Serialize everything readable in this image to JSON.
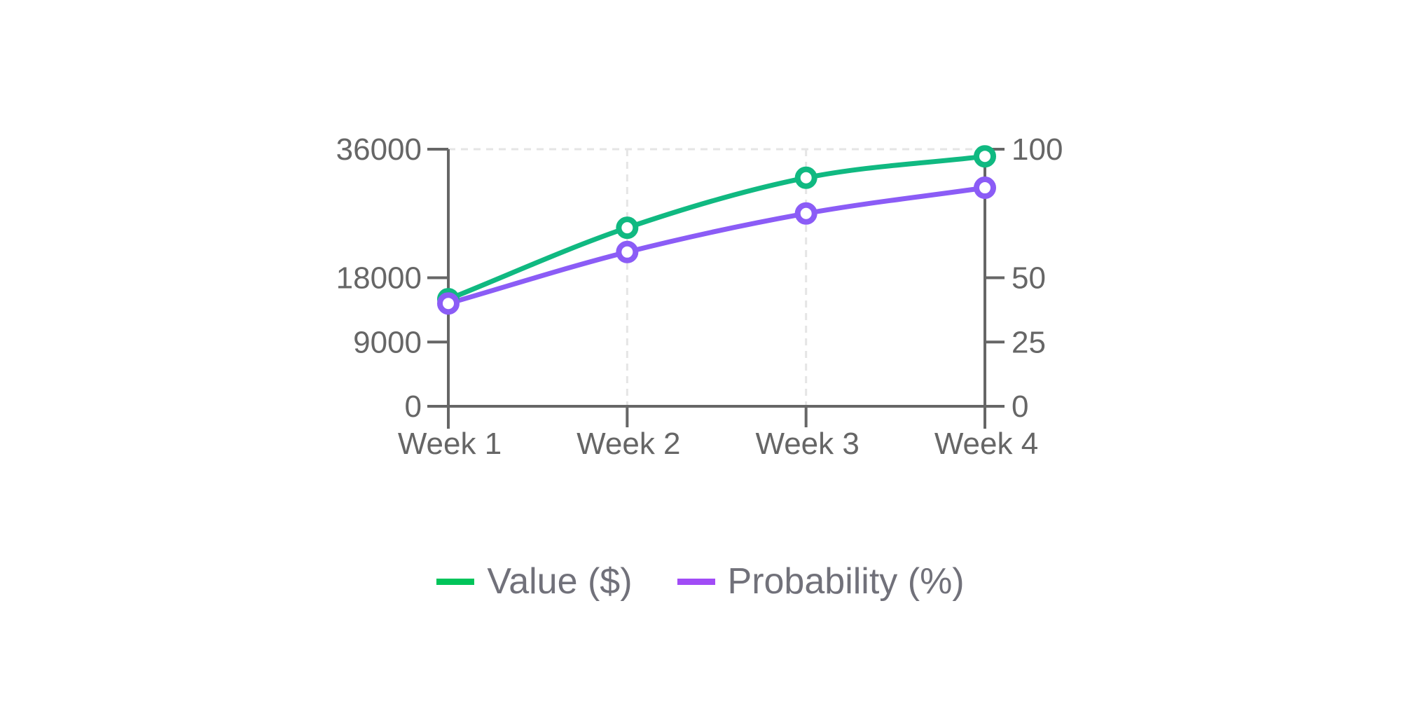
{
  "chart_data": {
    "type": "line",
    "title": "",
    "categories": [
      "Week 1",
      "Week 2",
      "Week 3",
      "Week 4"
    ],
    "series": [
      {
        "name": "Value ($)",
        "axis": "left",
        "color": "#10b981",
        "legend_color": "#00c45a",
        "values": [
          15000,
          25000,
          32000,
          35000
        ]
      },
      {
        "name": "Probability (%)",
        "axis": "right",
        "color": "#8b5cf6",
        "legend_color": "#a14cf6",
        "values": [
          40,
          60,
          75,
          85
        ]
      }
    ],
    "xlabel": "",
    "ylabel_left": "",
    "ylabel_right": "",
    "y_left": {
      "ticks": [
        0,
        9000,
        18000,
        36000
      ],
      "tick_labels": [
        "0",
        "9000",
        "18000",
        "36000"
      ],
      "range": [
        0,
        36000
      ]
    },
    "y_right": {
      "ticks": [
        0,
        25,
        50,
        100
      ],
      "tick_labels": [
        "0",
        "25",
        "50",
        "100"
      ],
      "range": [
        0,
        100
      ]
    },
    "grid": {
      "horizontal": "top-only dashed",
      "vertical": "dashed at inner categories"
    },
    "legend_position": "bottom-center",
    "curve": "smooth (monotone)"
  },
  "colors": {
    "axis": "#666666",
    "grid": "#e5e5e5",
    "marker_fill": "#ffffff",
    "legend_text": "#71717a"
  }
}
